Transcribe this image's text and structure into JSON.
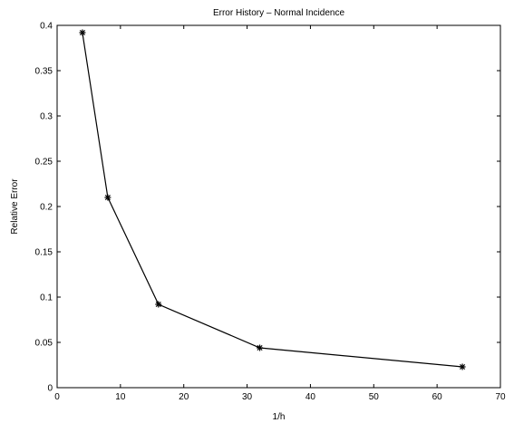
{
  "chart_data": {
    "type": "line",
    "title": "Error History – Normal Incidence",
    "xlabel": "1/h",
    "ylabel": "Relative Error",
    "xlim": [
      0,
      70
    ],
    "ylim": [
      0,
      0.4
    ],
    "xticks": [
      "0",
      "10",
      "20",
      "30",
      "40",
      "50",
      "60",
      "70"
    ],
    "yticks": [
      "0",
      "0.05",
      "0.1",
      "0.15",
      "0.2",
      "0.25",
      "0.3",
      "0.35",
      "0.4"
    ],
    "grid": false,
    "series": [
      {
        "x": [
          4,
          8,
          16,
          32,
          64
        ],
        "y": [
          0.392,
          0.21,
          0.092,
          0.044,
          0.023
        ],
        "marker": "asterisk",
        "color": "#000000"
      }
    ]
  }
}
